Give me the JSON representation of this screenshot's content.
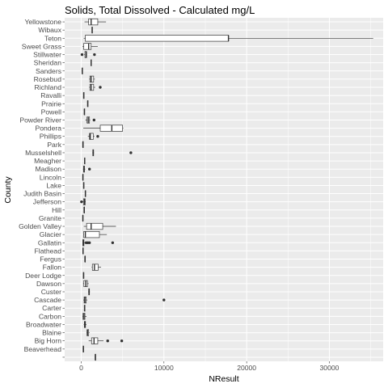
{
  "chart_data": {
    "type": "boxplot",
    "orientation": "horizontal",
    "title": "Solids, Total Dissolved - Calculated mg/L",
    "xlabel": "NResult",
    "ylabel": "County",
    "xlim": [
      -2000,
      36500
    ],
    "xticks": [
      0,
      10000,
      20000,
      30000
    ],
    "colors": {
      "panel": "#ebebeb",
      "grid_major": "#ffffff",
      "box_fill": "#ffffff",
      "box_line": "#333333",
      "text": "#4d4d4d"
    },
    "categories": [
      "",
      "Beaverhead",
      "Big Horn",
      "Blaine",
      "Broadwater",
      "Carbon",
      "Carter",
      "Cascade",
      "Custer",
      "Dawson",
      "Deer Lodge",
      "Fallon",
      "Fergus",
      "Flathead",
      "Gallatin",
      "Glacier",
      "Golden Valley",
      "Granite",
      "Hill",
      "Jefferson",
      "Judith Basin",
      "Lake",
      "Lincoln",
      "Madison",
      "Meagher",
      "Musselshell",
      "Park",
      "Phillips",
      "Pondera",
      "Powder River",
      "Powell",
      "Prairie",
      "Ravalli",
      "Richland",
      "Rosebud",
      "Sanders",
      "Sheridan",
      "Stillwater",
      "Sweet Grass",
      "Teton",
      "Wibaux",
      "Yellowstone"
    ],
    "boxes": [
      {
        "min": 1700,
        "q1": 1700,
        "median": 1700,
        "q3": 1700,
        "max": 1700,
        "outliers": []
      },
      {
        "min": 180,
        "q1": 230,
        "median": 260,
        "q3": 300,
        "max": 340,
        "outliers": []
      },
      {
        "min": 900,
        "q1": 1250,
        "median": 1550,
        "q3": 2000,
        "max": 2700,
        "outliers": [
          3200,
          4900
        ]
      },
      {
        "min": 650,
        "q1": 700,
        "median": 760,
        "q3": 900,
        "max": 1000,
        "outliers": []
      },
      {
        "min": 300,
        "q1": 380,
        "median": 450,
        "q3": 520,
        "max": 650,
        "outliers": []
      },
      {
        "min": 150,
        "q1": 220,
        "median": 330,
        "q3": 450,
        "max": 650,
        "outliers": []
      },
      {
        "min": 400,
        "q1": 400,
        "median": 400,
        "q3": 400,
        "max": 400,
        "outliers": []
      },
      {
        "min": 250,
        "q1": 350,
        "median": 450,
        "q3": 600,
        "max": 750,
        "outliers": [
          10000
        ]
      },
      {
        "min": 850,
        "q1": 900,
        "median": 950,
        "q3": 1000,
        "max": 1050,
        "outliers": []
      },
      {
        "min": 220,
        "q1": 320,
        "median": 550,
        "q3": 750,
        "max": 900,
        "outliers": []
      },
      {
        "min": 230,
        "q1": 260,
        "median": 290,
        "q3": 320,
        "max": 350,
        "outliers": []
      },
      {
        "min": 1250,
        "q1": 1350,
        "median": 1600,
        "q3": 2050,
        "max": 2400,
        "outliers": []
      },
      {
        "min": 450,
        "q1": 450,
        "median": 450,
        "q3": 450,
        "max": 450,
        "outliers": []
      },
      {
        "min": 180,
        "q1": 200,
        "median": 220,
        "q3": 240,
        "max": 260,
        "outliers": []
      },
      {
        "min": 150,
        "q1": 200,
        "median": 250,
        "q3": 330,
        "max": 500,
        "outliers": [
          600,
          800,
          1000,
          3800
        ]
      },
      {
        "min": 250,
        "q1": 300,
        "median": 500,
        "q3": 2200,
        "max": 3100,
        "outliers": []
      },
      {
        "min": 300,
        "q1": 650,
        "median": 1200,
        "q3": 2600,
        "max": 4200,
        "outliers": []
      },
      {
        "min": 150,
        "q1": 170,
        "median": 200,
        "q3": 230,
        "max": 260,
        "outliers": []
      },
      {
        "min": 350,
        "q1": 350,
        "median": 350,
        "q3": 350,
        "max": 350,
        "outliers": []
      },
      {
        "min": 100,
        "q1": 280,
        "median": 400,
        "q3": 480,
        "max": 550,
        "outliers": [
          40
        ]
      },
      {
        "min": 450,
        "q1": 480,
        "median": 500,
        "q3": 520,
        "max": 550,
        "outliers": []
      },
      {
        "min": 250,
        "q1": 280,
        "median": 300,
        "q3": 330,
        "max": 360,
        "outliers": []
      },
      {
        "min": 150,
        "q1": 180,
        "median": 200,
        "q3": 220,
        "max": 250,
        "outliers": []
      },
      {
        "min": 200,
        "q1": 280,
        "median": 330,
        "q3": 400,
        "max": 500,
        "outliers": [
          1000
        ]
      },
      {
        "min": 380,
        "q1": 400,
        "median": 420,
        "q3": 440,
        "max": 460,
        "outliers": []
      },
      {
        "min": 1350,
        "q1": 1400,
        "median": 1450,
        "q3": 1500,
        "max": 1550,
        "outliers": [
          6000
        ]
      },
      {
        "min": 200,
        "q1": 200,
        "median": 200,
        "q3": 200,
        "max": 200,
        "outliers": []
      },
      {
        "min": 800,
        "q1": 1000,
        "median": 1100,
        "q3": 1450,
        "max": 1600,
        "outliers": [
          2000
        ]
      },
      {
        "min": 250,
        "q1": 2300,
        "median": 3700,
        "q3": 5000,
        "max": 5100,
        "outliers": []
      },
      {
        "min": 500,
        "q1": 700,
        "median": 850,
        "q3": 1000,
        "max": 1100,
        "outliers": [
          1550
        ]
      },
      {
        "min": 350,
        "q1": 370,
        "median": 380,
        "q3": 400,
        "max": 420,
        "outliers": []
      },
      {
        "min": 750,
        "q1": 770,
        "median": 780,
        "q3": 800,
        "max": 820,
        "outliers": []
      },
      {
        "min": 280,
        "q1": 290,
        "median": 300,
        "q3": 310,
        "max": 320,
        "outliers": []
      },
      {
        "min": 950,
        "q1": 1050,
        "median": 1200,
        "q3": 1500,
        "max": 1700,
        "outliers": [
          2300
        ]
      },
      {
        "min": 950,
        "q1": 1050,
        "median": 1200,
        "q3": 1500,
        "max": 1650,
        "outliers": []
      },
      {
        "min": 100,
        "q1": 110,
        "median": 120,
        "q3": 130,
        "max": 140,
        "outliers": []
      },
      {
        "min": 1150,
        "q1": 1180,
        "median": 1200,
        "q3": 1220,
        "max": 1250,
        "outliers": []
      },
      {
        "min": 350,
        "q1": 450,
        "median": 600,
        "q3": 650,
        "max": 700,
        "outliers": [
          100,
          1600
        ]
      },
      {
        "min": 150,
        "q1": 300,
        "median": 900,
        "q3": 1200,
        "max": 2000,
        "outliers": []
      },
      {
        "min": 300,
        "q1": 500,
        "median": 17800,
        "q3": 17800,
        "max": 35300,
        "outliers": []
      },
      {
        "min": 1280,
        "q1": 1300,
        "median": 1320,
        "q3": 1340,
        "max": 1360,
        "outliers": []
      },
      {
        "min": 400,
        "q1": 900,
        "median": 1200,
        "q3": 2000,
        "max": 3000,
        "outliers": []
      }
    ]
  }
}
